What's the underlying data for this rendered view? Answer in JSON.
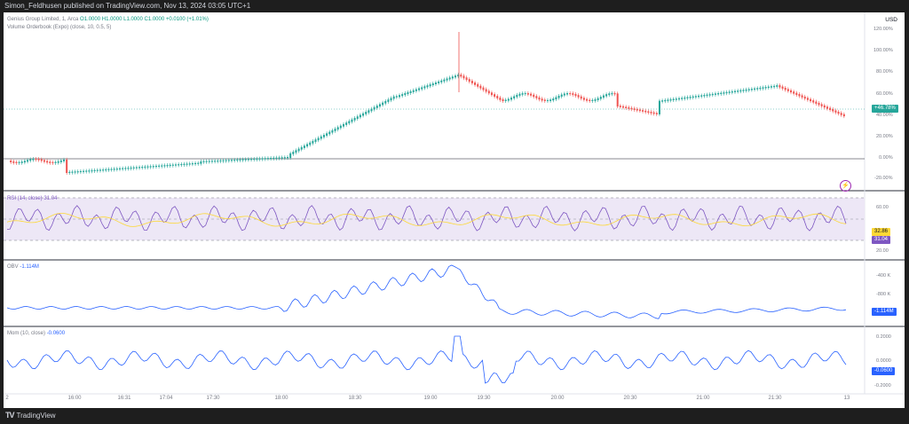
{
  "header": {
    "attribution": "Simon_Feldhusen published on TradingView.com, Nov 13, 2024 03:05 UTC+1"
  },
  "footer": {
    "logo_text": "TradingView",
    "logo_mark": "TV"
  },
  "main_pane": {
    "symbol_line": {
      "symbol": "Genius Group Limited, 1, Arca",
      "o": "O1.0000",
      "h": "H1.0000",
      "l": "L1.0000",
      "c": "C1.0000",
      "change": "+0.0100 (+1.01%)"
    },
    "indicator_line": "Volume Orderbook (Expo) (close, 10, 0.5, 5)",
    "currency": "USD",
    "price_scale": [
      "120.00%",
      "100.00%",
      "80.00%",
      "60.00%",
      "40.00%",
      "20.00%",
      "0.00%",
      "-20.00%"
    ],
    "last_badge": "+46.78%",
    "colors": {
      "up": "#26a69a",
      "down": "#ef5350",
      "last": "#26a69a"
    }
  },
  "rsi_pane": {
    "legend": "RSI (14, close) 31.04",
    "scale": [
      "60.00",
      "20.00"
    ],
    "ma_badge": "32.86",
    "rsi_badge": "31.04",
    "colors": {
      "rsi": "#7e57c2",
      "ma": "#fdd835",
      "band": "#ede7f6"
    }
  },
  "obv_pane": {
    "legend_name": "OBV",
    "legend_value": "-1.114M",
    "scale": [
      "-400 K",
      "-800 K"
    ],
    "badge": "-1.114M",
    "colors": {
      "line": "#2962ff"
    }
  },
  "mom_pane": {
    "legend_name": "Mom (10, close)",
    "legend_value": "-0.0600",
    "scale": [
      "0.2000",
      "0.0000",
      "-0.2000"
    ],
    "badge": "-0.0600",
    "colors": {
      "line": "#2962ff"
    }
  },
  "time_axis": [
    "2",
    "16:00",
    "16:31",
    "17:04",
    "17:30",
    "18:00",
    "18:30",
    "19:00",
    "19:30",
    "20:00",
    "20:30",
    "21:00",
    "21:30",
    "13"
  ]
}
